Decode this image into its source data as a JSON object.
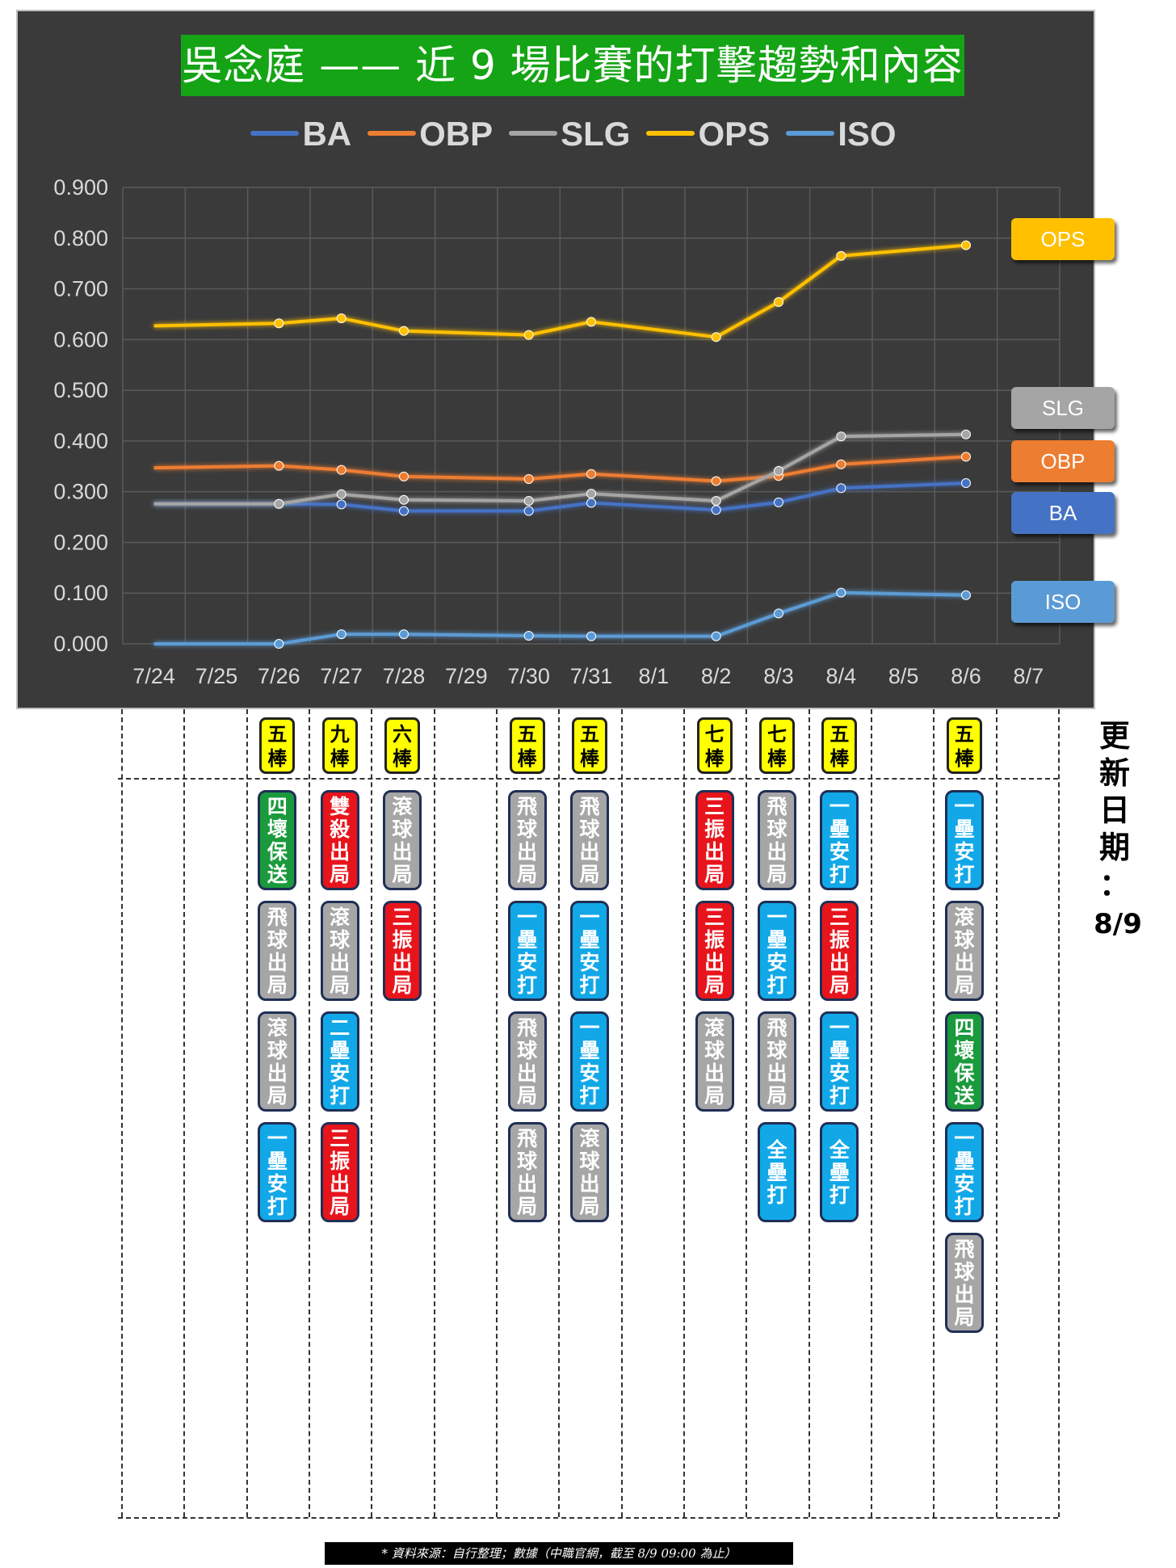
{
  "title": "吳念庭 —— 近 9 場比賽的打擊趨勢和內容",
  "legend": [
    {
      "name": "BA",
      "color": "#4472c4"
    },
    {
      "name": "OBP",
      "color": "#ed7d31"
    },
    {
      "name": "SLG",
      "color": "#a5a5a5"
    },
    {
      "name": "OPS",
      "color": "#ffc000"
    },
    {
      "name": "ISO",
      "color": "#5b9bd5"
    }
  ],
  "chart_data": {
    "type": "line",
    "title": "吳念庭 —— 近 9 場比賽的打擊趨勢和內容",
    "xlabel": "",
    "ylabel": "",
    "ylim": [
      0,
      0.9
    ],
    "yticks": [
      "0.000",
      "0.100",
      "0.200",
      "0.300",
      "0.400",
      "0.500",
      "0.600",
      "0.700",
      "0.800",
      "0.900"
    ],
    "categories": [
      "7/24",
      "7/25",
      "7/26",
      "7/27",
      "7/28",
      "7/29",
      "7/30",
      "7/31",
      "8/1",
      "8/2",
      "8/3",
      "8/4",
      "8/5",
      "8/6",
      "8/7"
    ],
    "grid": true,
    "legend_position": "top",
    "series": [
      {
        "name": "BA",
        "color": "#4472c4",
        "points": [
          [
            "7/24",
            0.276
          ],
          [
            "7/26",
            0.276
          ],
          [
            "7/27",
            0.275
          ],
          [
            "7/28",
            0.262
          ],
          [
            "7/30",
            0.262
          ],
          [
            "7/31",
            0.278
          ],
          [
            "8/2",
            0.264
          ],
          [
            "8/3",
            0.279
          ],
          [
            "8/4",
            0.307
          ],
          [
            "8/6",
            0.317
          ]
        ]
      },
      {
        "name": "OBP",
        "color": "#ed7d31",
        "points": [
          [
            "7/24",
            0.347
          ],
          [
            "7/26",
            0.351
          ],
          [
            "7/27",
            0.343
          ],
          [
            "7/28",
            0.33
          ],
          [
            "7/30",
            0.325
          ],
          [
            "7/31",
            0.335
          ],
          [
            "8/2",
            0.321
          ],
          [
            "8/3",
            0.331
          ],
          [
            "8/4",
            0.354
          ],
          [
            "8/6",
            0.369
          ]
        ]
      },
      {
        "name": "SLG",
        "color": "#a5a5a5",
        "points": [
          [
            "7/24",
            0.276
          ],
          [
            "7/26",
            0.276
          ],
          [
            "7/27",
            0.295
          ],
          [
            "7/28",
            0.284
          ],
          [
            "7/30",
            0.282
          ],
          [
            "7/31",
            0.296
          ],
          [
            "8/2",
            0.282
          ],
          [
            "8/3",
            0.341
          ],
          [
            "8/4",
            0.409
          ],
          [
            "8/6",
            0.413
          ]
        ]
      },
      {
        "name": "OPS",
        "color": "#ffc000",
        "points": [
          [
            "7/24",
            0.627
          ],
          [
            "7/26",
            0.632
          ],
          [
            "7/27",
            0.642
          ],
          [
            "7/28",
            0.617
          ],
          [
            "7/30",
            0.609
          ],
          [
            "7/31",
            0.635
          ],
          [
            "8/2",
            0.605
          ],
          [
            "8/3",
            0.674
          ],
          [
            "8/4",
            0.765
          ],
          [
            "8/6",
            0.786
          ]
        ]
      },
      {
        "name": "ISO",
        "color": "#5b9bd5",
        "points": [
          [
            "7/24",
            0.0
          ],
          [
            "7/26",
            0.0
          ],
          [
            "7/27",
            0.019
          ],
          [
            "7/28",
            0.019
          ],
          [
            "7/30",
            0.016
          ],
          [
            "7/31",
            0.015
          ],
          [
            "8/2",
            0.015
          ],
          [
            "8/3",
            0.06
          ],
          [
            "8/4",
            0.101
          ],
          [
            "8/6",
            0.096
          ]
        ]
      }
    ],
    "end_labels": [
      {
        "name": "OPS",
        "color": "#ffc000",
        "value": 0.786
      },
      {
        "name": "SLG",
        "color": "#a5a5a5",
        "value": 0.413
      },
      {
        "name": "OBP",
        "color": "#ed7d31",
        "value": 0.369
      },
      {
        "name": "BA",
        "color": "#4472c4",
        "value": 0.317
      },
      {
        "name": "ISO",
        "color": "#5b9bd5",
        "value": 0.096
      }
    ]
  },
  "games": [
    {
      "date": "7/26",
      "order": "五棒",
      "pa": [
        {
          "text": "四壞保送",
          "type": "walk"
        },
        {
          "text": "飛球出局",
          "type": "out"
        },
        {
          "text": "滾球出局",
          "type": "out"
        },
        {
          "text": "一壘安打",
          "type": "hit"
        }
      ]
    },
    {
      "date": "7/27",
      "order": "九棒",
      "pa": [
        {
          "text": "雙殺出局",
          "type": "k"
        },
        {
          "text": "滾球出局",
          "type": "out"
        },
        {
          "text": "二壘安打",
          "type": "hit"
        },
        {
          "text": "三振出局",
          "type": "k"
        }
      ]
    },
    {
      "date": "7/28",
      "order": "六棒",
      "pa": [
        {
          "text": "滾球出局",
          "type": "out"
        },
        {
          "text": "三振出局",
          "type": "k"
        }
      ]
    },
    {
      "date": "7/30",
      "order": "五棒",
      "pa": [
        {
          "text": "飛球出局",
          "type": "out"
        },
        {
          "text": "一壘安打",
          "type": "hit"
        },
        {
          "text": "飛球出局",
          "type": "out"
        },
        {
          "text": "飛球出局",
          "type": "out"
        }
      ]
    },
    {
      "date": "7/31",
      "order": "五棒",
      "pa": [
        {
          "text": "飛球出局",
          "type": "out"
        },
        {
          "text": "一壘安打",
          "type": "hit"
        },
        {
          "text": "一壘安打",
          "type": "hit"
        },
        {
          "text": "滾球出局",
          "type": "out"
        }
      ]
    },
    {
      "date": "8/2",
      "order": "七棒",
      "pa": [
        {
          "text": "三振出局",
          "type": "k"
        },
        {
          "text": "三振出局",
          "type": "k"
        },
        {
          "text": "滾球出局",
          "type": "out"
        }
      ]
    },
    {
      "date": "8/3",
      "order": "七棒",
      "pa": [
        {
          "text": "飛球出局",
          "type": "out"
        },
        {
          "text": "一壘安打",
          "type": "hit"
        },
        {
          "text": "飛球出局",
          "type": "out"
        },
        {
          "text": "全壘打",
          "type": "hit"
        }
      ]
    },
    {
      "date": "8/4",
      "order": "五棒",
      "pa": [
        {
          "text": "一壘安打",
          "type": "hit"
        },
        {
          "text": "三振出局",
          "type": "k"
        },
        {
          "text": "一壘安打",
          "type": "hit"
        },
        {
          "text": "全壘打",
          "type": "hit"
        }
      ]
    },
    {
      "date": "8/6",
      "order": "五棒",
      "pa": [
        {
          "text": "一壘安打",
          "type": "hit"
        },
        {
          "text": "滾球出局",
          "type": "out"
        },
        {
          "text": "四壞保送",
          "type": "walk"
        },
        {
          "text": "一壘安打",
          "type": "hit"
        },
        {
          "text": "飛球出局",
          "type": "out"
        }
      ]
    }
  ],
  "pa_colors": {
    "hit": "#12a8e8",
    "out": "#a6a6a6",
    "k": "#e8141c",
    "walk": "#1a9a3c"
  },
  "update_label": "更新日期：",
  "update_date": "8/9",
  "source": "* 資料來源：自行整理；數據（中職官網，截至 8/9 09:00 為止）"
}
